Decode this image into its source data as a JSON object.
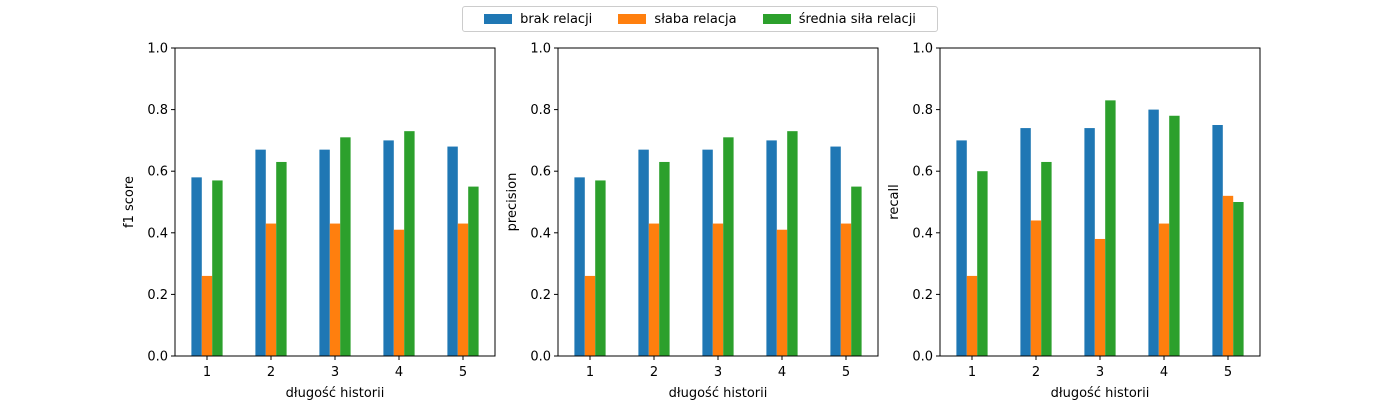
{
  "legend": {
    "items": [
      {
        "label": "brak relacji",
        "color": "#1f77b4"
      },
      {
        "label": "słaba relacja",
        "color": "#ff7f0e"
      },
      {
        "label": "średnia siła relacji",
        "color": "#2ca02c"
      }
    ]
  },
  "chart_data": [
    {
      "type": "bar",
      "xlabel": "długość historii",
      "ylabel": "f1 score",
      "ylim": [
        0,
        1.0
      ],
      "yticks": [
        "0.0",
        "0.2",
        "0.4",
        "0.6",
        "0.8",
        "1.0"
      ],
      "categories": [
        "1",
        "2",
        "3",
        "4",
        "5"
      ],
      "series": [
        {
          "name": "brak relacji",
          "values": [
            0.58,
            0.67,
            0.67,
            0.7,
            0.68
          ]
        },
        {
          "name": "słaba relacja",
          "values": [
            0.26,
            0.43,
            0.43,
            0.41,
            0.43
          ]
        },
        {
          "name": "średnia siła relacji",
          "values": [
            0.57,
            0.63,
            0.71,
            0.73,
            0.55
          ]
        }
      ]
    },
    {
      "type": "bar",
      "xlabel": "długość historii",
      "ylabel": "precision",
      "ylim": [
        0,
        1.0
      ],
      "yticks": [
        "0.0",
        "0.2",
        "0.4",
        "0.6",
        "0.8",
        "1.0"
      ],
      "categories": [
        "1",
        "2",
        "3",
        "4",
        "5"
      ],
      "series": [
        {
          "name": "brak relacji",
          "values": [
            0.58,
            0.67,
            0.67,
            0.7,
            0.68
          ]
        },
        {
          "name": "słaba relacja",
          "values": [
            0.26,
            0.43,
            0.43,
            0.41,
            0.43
          ]
        },
        {
          "name": "średnia siła relacji",
          "values": [
            0.57,
            0.63,
            0.71,
            0.73,
            0.55
          ]
        }
      ]
    },
    {
      "type": "bar",
      "xlabel": "długość historii",
      "ylabel": "recall",
      "ylim": [
        0,
        1.0
      ],
      "yticks": [
        "0.0",
        "0.2",
        "0.4",
        "0.6",
        "0.8",
        "1.0"
      ],
      "categories": [
        "1",
        "2",
        "3",
        "4",
        "5"
      ],
      "series": [
        {
          "name": "brak relacji",
          "values": [
            0.7,
            0.74,
            0.74,
            0.8,
            0.75
          ]
        },
        {
          "name": "słaba relacja",
          "values": [
            0.26,
            0.44,
            0.38,
            0.43,
            0.52
          ]
        },
        {
          "name": "średnia siła relacji",
          "values": [
            0.6,
            0.63,
            0.83,
            0.78,
            0.5
          ]
        }
      ]
    }
  ]
}
